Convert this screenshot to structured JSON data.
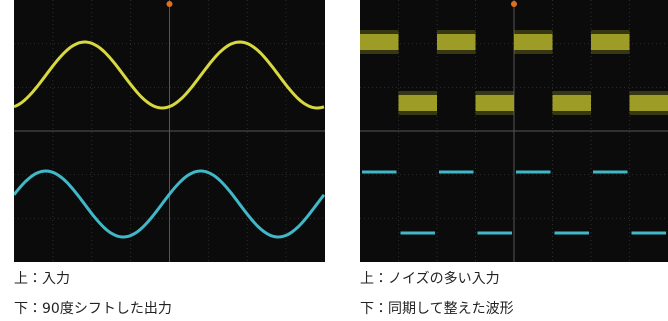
{
  "panels": [
    {
      "captions": [
        "上：入力",
        "下：90度シフトした出力"
      ]
    },
    {
      "captions": [
        "上：ノイズの多い入力",
        "下：同期して整えた波形"
      ]
    }
  ]
}
